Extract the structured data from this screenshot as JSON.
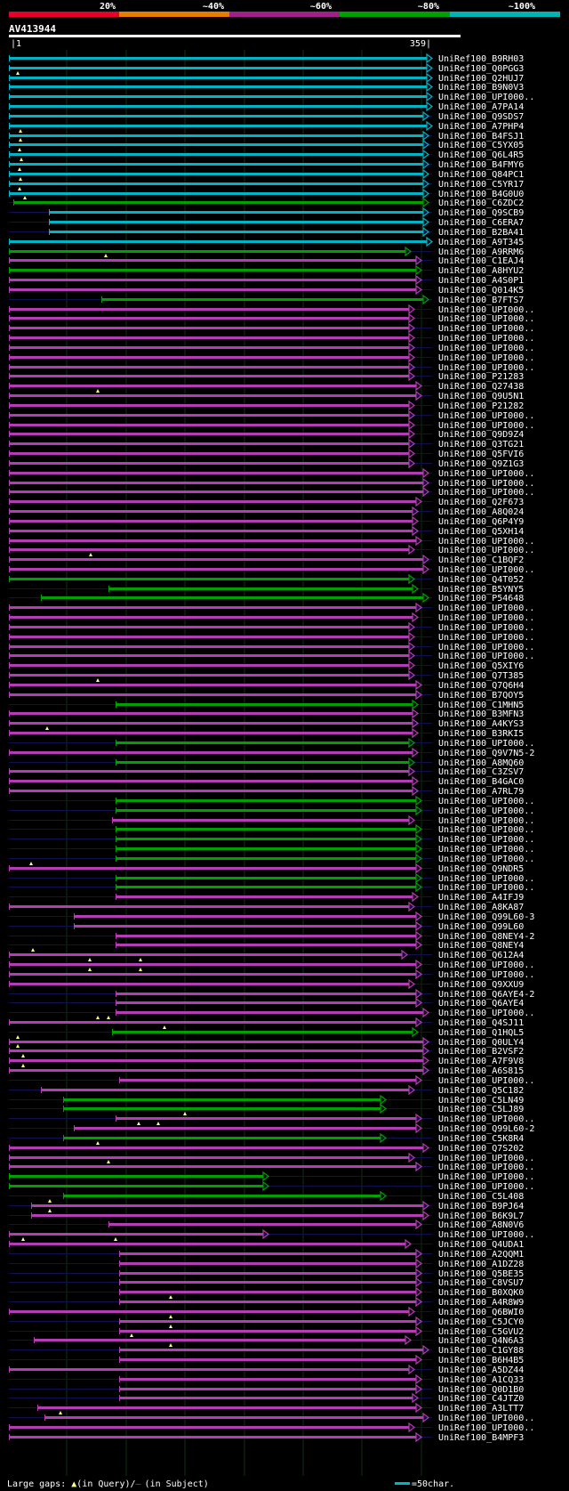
{
  "header": {
    "pct_labels": [
      "20%",
      "~40%",
      "~60%",
      "~80%",
      "~100%"
    ],
    "band_colors": [
      "#e8002a",
      "#e87c00",
      "#a0208a",
      "#00a000",
      "#00b4b4"
    ]
  },
  "query": {
    "id": "AV413944",
    "start": "|1",
    "end": "359|"
  },
  "footer": {
    "legend_prefix": "Large gaps: ",
    "legend_query": "(in Query)/",
    "legend_subject": "(in Subject)",
    "scale_label": "=50char.",
    "gap_marker_color": "#ffff80",
    "subject_gap_color": "#2244aa"
  },
  "colors": {
    "cyan": "#00b4c8",
    "green": "#00a000",
    "magenta": "#b43cb4",
    "backbone": "#101050",
    "grid": "#103010"
  },
  "hits": [
    {
      "id": "UniRef100_B9RH03",
      "c": "cyan",
      "s": 10,
      "e": 486,
      "m": []
    },
    {
      "id": "UniRef100_Q0PGG3",
      "c": "cyan",
      "s": 10,
      "e": 486,
      "m": []
    },
    {
      "id": "UniRef100_Q2HUJ7",
      "c": "cyan",
      "s": 10,
      "e": 486,
      "m": [
        20
      ]
    },
    {
      "id": "UniRef100_B9N0V3",
      "c": "cyan",
      "s": 10,
      "e": 486,
      "m": []
    },
    {
      "id": "UniRef100_UPI000..",
      "c": "cyan",
      "s": 10,
      "e": 486,
      "m": []
    },
    {
      "id": "UniRef100_A7PA14",
      "c": "cyan",
      "s": 10,
      "e": 486,
      "m": []
    },
    {
      "id": "UniRef100_Q9SDS7",
      "c": "cyan",
      "s": 10,
      "e": 482,
      "m": []
    },
    {
      "id": "UniRef100_A7PHP4",
      "c": "cyan",
      "s": 10,
      "e": 486,
      "m": []
    },
    {
      "id": "UniRef100_B4FSJ1",
      "c": "cyan",
      "s": 10,
      "e": 482,
      "m": [
        23
      ]
    },
    {
      "id": "UniRef100_C5YX05",
      "c": "cyan",
      "s": 10,
      "e": 482,
      "m": [
        23
      ]
    },
    {
      "id": "UniRef100_Q6L4R5",
      "c": "cyan",
      "s": 10,
      "e": 482,
      "m": [
        22
      ]
    },
    {
      "id": "UniRef100_B4FMY6",
      "c": "cyan",
      "s": 10,
      "e": 482,
      "m": [
        24
      ]
    },
    {
      "id": "UniRef100_Q84PC1",
      "c": "cyan",
      "s": 10,
      "e": 482,
      "m": [
        22
      ]
    },
    {
      "id": "UniRef100_C5YR17",
      "c": "cyan",
      "s": 10,
      "e": 482,
      "m": [
        23
      ]
    },
    {
      "id": "UniRef100_B4G0U0",
      "c": "cyan",
      "s": 10,
      "e": 482,
      "m": [
        22
      ]
    },
    {
      "id": "UniRef100_C6ZDC2",
      "c": "green",
      "s": 15,
      "e": 482,
      "m": [
        28
      ]
    },
    {
      "id": "UniRef100_Q9SCB9",
      "c": "cyan",
      "s": 55,
      "e": 482,
      "m": []
    },
    {
      "id": "UniRef100_C6ERA7",
      "c": "cyan",
      "s": 55,
      "e": 482,
      "m": []
    },
    {
      "id": "UniRef100_B2BA41",
      "c": "cyan",
      "s": 55,
      "e": 482,
      "m": []
    },
    {
      "id": "UniRef100_A9T345",
      "c": "cyan",
      "s": 10,
      "e": 486,
      "m": []
    },
    {
      "id": "UniRef100_A9RRM6",
      "c": "green",
      "s": 10,
      "e": 462,
      "m": []
    },
    {
      "id": "UniRef100_C1EAJ4",
      "c": "magenta",
      "s": 10,
      "e": 474,
      "m": [
        119
      ]
    },
    {
      "id": "UniRef100_A8HYU2",
      "c": "green",
      "s": 10,
      "e": 474,
      "m": []
    },
    {
      "id": "UniRef100_A4S0P1",
      "c": "magenta",
      "s": 10,
      "e": 474,
      "m": []
    },
    {
      "id": "UniRef100_Q014K5",
      "c": "magenta",
      "s": 10,
      "e": 474,
      "m": []
    },
    {
      "id": "UniRef100_B7FTS7",
      "c": "green",
      "s": 114,
      "e": 482,
      "m": []
    },
    {
      "id": "UniRef100_UPI000..",
      "c": "magenta",
      "s": 10,
      "e": 466,
      "m": []
    },
    {
      "id": "UniRef100_UPI000..",
      "c": "magenta",
      "s": 10,
      "e": 466,
      "m": []
    },
    {
      "id": "UniRef100_UPI000..",
      "c": "magenta",
      "s": 10,
      "e": 466,
      "m": []
    },
    {
      "id": "UniRef100_UPI000..",
      "c": "magenta",
      "s": 10,
      "e": 466,
      "m": []
    },
    {
      "id": "UniRef100_UPI000..",
      "c": "magenta",
      "s": 10,
      "e": 466,
      "m": []
    },
    {
      "id": "UniRef100_UPI000..",
      "c": "magenta",
      "s": 10,
      "e": 466,
      "m": []
    },
    {
      "id": "UniRef100_UPI000..",
      "c": "magenta",
      "s": 10,
      "e": 466,
      "m": []
    },
    {
      "id": "UniRef100_P21283",
      "c": "magenta",
      "s": 10,
      "e": 466,
      "m": []
    },
    {
      "id": "UniRef100_Q27438",
      "c": "magenta",
      "s": 10,
      "e": 474,
      "m": []
    },
    {
      "id": "UniRef100_Q9U5N1",
      "c": "magenta",
      "s": 10,
      "e": 474,
      "m": [
        110
      ]
    },
    {
      "id": "UniRef100_P21282",
      "c": "magenta",
      "s": 10,
      "e": 466,
      "m": []
    },
    {
      "id": "UniRef100_UPI000..",
      "c": "magenta",
      "s": 10,
      "e": 466,
      "m": []
    },
    {
      "id": "UniRef100_UPI000..",
      "c": "magenta",
      "s": 10,
      "e": 466,
      "m": []
    },
    {
      "id": "UniRef100_Q9D9Z4",
      "c": "magenta",
      "s": 10,
      "e": 466,
      "m": []
    },
    {
      "id": "UniRef100_Q3TG21",
      "c": "magenta",
      "s": 10,
      "e": 466,
      "m": []
    },
    {
      "id": "UniRef100_Q5FVI6",
      "c": "magenta",
      "s": 10,
      "e": 466,
      "m": []
    },
    {
      "id": "UniRef100_Q9Z1G3",
      "c": "magenta",
      "s": 10,
      "e": 466,
      "m": []
    },
    {
      "id": "UniRef100_UPI000..",
      "c": "magenta",
      "s": 10,
      "e": 482,
      "m": []
    },
    {
      "id": "UniRef100_UPI000..",
      "c": "magenta",
      "s": 10,
      "e": 482,
      "m": []
    },
    {
      "id": "UniRef100_UPI000..",
      "c": "magenta",
      "s": 10,
      "e": 482,
      "m": []
    },
    {
      "id": "UniRef100_Q2F673",
      "c": "magenta",
      "s": 10,
      "e": 474,
      "m": []
    },
    {
      "id": "UniRef100_A8Q024",
      "c": "magenta",
      "s": 10,
      "e": 470,
      "m": []
    },
    {
      "id": "UniRef100_Q6P4Y9",
      "c": "magenta",
      "s": 10,
      "e": 470,
      "m": []
    },
    {
      "id": "UniRef100_Q5XH14",
      "c": "magenta",
      "s": 10,
      "e": 470,
      "m": []
    },
    {
      "id": "UniRef100_UPI000..",
      "c": "magenta",
      "s": 10,
      "e": 474,
      "m": []
    },
    {
      "id": "UniRef100_UPI000..",
      "c": "magenta",
      "s": 10,
      "e": 466,
      "m": []
    },
    {
      "id": "UniRef100_C1BQF2",
      "c": "magenta",
      "s": 10,
      "e": 482,
      "m": [
        102
      ]
    },
    {
      "id": "UniRef100_UPI000..",
      "c": "magenta",
      "s": 10,
      "e": 482,
      "m": []
    },
    {
      "id": "UniRef100_Q4T052",
      "c": "green",
      "s": 10,
      "e": 466,
      "m": []
    },
    {
      "id": "UniRef100_B5YNY5",
      "c": "green",
      "s": 122,
      "e": 470,
      "m": []
    },
    {
      "id": "UniRef100_P54648",
      "c": "green",
      "s": 46,
      "e": 482,
      "m": []
    },
    {
      "id": "UniRef100_UPI000..",
      "c": "magenta",
      "s": 10,
      "e": 474,
      "m": []
    },
    {
      "id": "UniRef100_UPI000..",
      "c": "magenta",
      "s": 10,
      "e": 470,
      "m": []
    },
    {
      "id": "UniRef100_UPI000..",
      "c": "magenta",
      "s": 10,
      "e": 466,
      "m": []
    },
    {
      "id": "UniRef100_UPI000..",
      "c": "magenta",
      "s": 10,
      "e": 466,
      "m": []
    },
    {
      "id": "UniRef100_UPI000..",
      "c": "magenta",
      "s": 10,
      "e": 466,
      "m": []
    },
    {
      "id": "UniRef100_UPI000..",
      "c": "magenta",
      "s": 10,
      "e": 466,
      "m": []
    },
    {
      "id": "UniRef100_Q5XIY6",
      "c": "magenta",
      "s": 10,
      "e": 466,
      "m": []
    },
    {
      "id": "UniRef100_Q7T385",
      "c": "magenta",
      "s": 10,
      "e": 466,
      "m": []
    },
    {
      "id": "UniRef100_Q7Q6H4",
      "c": "magenta",
      "s": 10,
      "e": 474,
      "m": [
        110
      ]
    },
    {
      "id": "UniRef100_B7QOY5",
      "c": "magenta",
      "s": 10,
      "e": 474,
      "m": []
    },
    {
      "id": "UniRef100_C1MHN5",
      "c": "green",
      "s": 130,
      "e": 470,
      "m": []
    },
    {
      "id": "UniRef100_B3MFN3",
      "c": "magenta",
      "s": 10,
      "e": 470,
      "m": []
    },
    {
      "id": "UniRef100_A4KYS3",
      "c": "magenta",
      "s": 10,
      "e": 470,
      "m": []
    },
    {
      "id": "UniRef100_B3RKI5",
      "c": "magenta",
      "s": 10,
      "e": 470,
      "m": [
        53
      ]
    },
    {
      "id": "UniRef100_UPI000..",
      "c": "green",
      "s": 130,
      "e": 466,
      "m": []
    },
    {
      "id": "UniRef100_Q9V7N5-2",
      "c": "magenta",
      "s": 10,
      "e": 470,
      "m": []
    },
    {
      "id": "UniRef100_A8MQ60",
      "c": "green",
      "s": 130,
      "e": 466,
      "m": []
    },
    {
      "id": "UniRef100_C3ZSV7",
      "c": "magenta",
      "s": 10,
      "e": 466,
      "m": []
    },
    {
      "id": "UniRef100_B4GAC0",
      "c": "magenta",
      "s": 10,
      "e": 470,
      "m": []
    },
    {
      "id": "UniRef100_A7RL79",
      "c": "magenta",
      "s": 10,
      "e": 470,
      "m": []
    },
    {
      "id": "UniRef100_UPI000..",
      "c": "green",
      "s": 130,
      "e": 474,
      "m": []
    },
    {
      "id": "UniRef100_UPI000..",
      "c": "green",
      "s": 130,
      "e": 474,
      "m": []
    },
    {
      "id": "UniRef100_UPI000..",
      "c": "magenta",
      "s": 126,
      "e": 466,
      "m": []
    },
    {
      "id": "UniRef100_UPI000..",
      "c": "green",
      "s": 130,
      "e": 474,
      "m": []
    },
    {
      "id": "UniRef100_UPI000..",
      "c": "green",
      "s": 130,
      "e": 474,
      "m": []
    },
    {
      "id": "UniRef100_UPI000..",
      "c": "green",
      "s": 130,
      "e": 474,
      "m": []
    },
    {
      "id": "UniRef100_UPI000..",
      "c": "green",
      "s": 130,
      "e": 474,
      "m": []
    },
    {
      "id": "UniRef100_Q9NDR5",
      "c": "magenta",
      "s": 10,
      "e": 474,
      "m": [
        35
      ]
    },
    {
      "id": "UniRef100_UPI000..",
      "c": "green",
      "s": 130,
      "e": 474,
      "m": []
    },
    {
      "id": "UniRef100_UPI000..",
      "c": "green",
      "s": 130,
      "e": 474,
      "m": []
    },
    {
      "id": "UniRef100_A4IFJ9",
      "c": "magenta",
      "s": 130,
      "e": 470,
      "m": []
    },
    {
      "id": "UniRef100_A8KA87",
      "c": "magenta",
      "s": 10,
      "e": 466,
      "m": []
    },
    {
      "id": "UniRef100_Q99L60-3",
      "c": "magenta",
      "s": 83,
      "e": 474,
      "m": []
    },
    {
      "id": "UniRef100_Q99L60",
      "c": "magenta",
      "s": 83,
      "e": 474,
      "m": []
    },
    {
      "id": "UniRef100_Q8NEY4-2",
      "c": "magenta",
      "s": 130,
      "e": 474,
      "m": []
    },
    {
      "id": "UniRef100_Q8NEY4",
      "c": "magenta",
      "s": 130,
      "e": 474,
      "m": []
    },
    {
      "id": "UniRef100_Q612A4",
      "c": "magenta",
      "s": 10,
      "e": 458,
      "m": [
        37
      ]
    },
    {
      "id": "UniRef100_UPI000..",
      "c": "magenta",
      "s": 10,
      "e": 474,
      "m": [
        101,
        158
      ]
    },
    {
      "id": "UniRef100_UPI000..",
      "c": "magenta",
      "s": 10,
      "e": 474,
      "m": [
        101,
        158
      ]
    },
    {
      "id": "UniRef100_Q9XXU9",
      "c": "magenta",
      "s": 10,
      "e": 466,
      "m": []
    },
    {
      "id": "UniRef100_Q6AYE4-2",
      "c": "magenta",
      "s": 130,
      "e": 474,
      "m": []
    },
    {
      "id": "UniRef100_Q6AYE4",
      "c": "magenta",
      "s": 130,
      "e": 474,
      "m": []
    },
    {
      "id": "UniRef100_UPI000..",
      "c": "magenta",
      "s": 130,
      "e": 482,
      "m": []
    },
    {
      "id": "UniRef100_Q4SJ11",
      "c": "magenta",
      "s": 10,
      "e": 474,
      "m": [
        110,
        122
      ]
    },
    {
      "id": "UniRef100_Q1HQL5",
      "c": "green",
      "s": 126,
      "e": 470,
      "m": [
        185
      ]
    },
    {
      "id": "UniRef100_Q0ULY4",
      "c": "magenta",
      "s": 10,
      "e": 482,
      "m": [
        20
      ]
    },
    {
      "id": "UniRef100_B2VSF2",
      "c": "magenta",
      "s": 10,
      "e": 482,
      "m": [
        20
      ]
    },
    {
      "id": "UniRef100_A7F9V8",
      "c": "magenta",
      "s": 10,
      "e": 482,
      "m": [
        26
      ]
    },
    {
      "id": "UniRef100_A6S815",
      "c": "magenta",
      "s": 10,
      "e": 482,
      "m": [
        26
      ]
    },
    {
      "id": "UniRef100_UPI000..",
      "c": "magenta",
      "s": 134,
      "e": 474,
      "m": []
    },
    {
      "id": "UniRef100_Q5C182",
      "c": "magenta",
      "s": 46,
      "e": 466,
      "m": []
    },
    {
      "id": "UniRef100_C5LN49",
      "c": "green",
      "s": 71,
      "e": 434,
      "m": []
    },
    {
      "id": "UniRef100_C5LJ89",
      "c": "green",
      "s": 71,
      "e": 434,
      "m": []
    },
    {
      "id": "UniRef100_UPI000..",
      "c": "magenta",
      "s": 130,
      "e": 474,
      "m": [
        208
      ]
    },
    {
      "id": "UniRef100_Q99L60-2",
      "c": "magenta",
      "s": 83,
      "e": 474,
      "m": [
        156,
        178
      ]
    },
    {
      "id": "UniRef100_C5K8R4",
      "c": "green",
      "s": 71,
      "e": 434,
      "m": []
    },
    {
      "id": "UniRef100_Q7S202",
      "c": "magenta",
      "s": 10,
      "e": 482,
      "m": [
        110
      ]
    },
    {
      "id": "UniRef100_UPI000..",
      "c": "magenta",
      "s": 10,
      "e": 466,
      "m": []
    },
    {
      "id": "UniRef100_UPI000..",
      "c": "magenta",
      "s": 10,
      "e": 474,
      "m": [
        122
      ]
    },
    {
      "id": "UniRef100_UPI000..",
      "c": "green",
      "s": 10,
      "e": 302,
      "m": []
    },
    {
      "id": "UniRef100_UPI000..",
      "c": "green",
      "s": 10,
      "e": 302,
      "m": []
    },
    {
      "id": "UniRef100_C5L408",
      "c": "green",
      "s": 71,
      "e": 434,
      "m": []
    },
    {
      "id": "UniRef100_B9PJ64",
      "c": "magenta",
      "s": 35,
      "e": 482,
      "m": [
        56
      ]
    },
    {
      "id": "UniRef100_B6K9L7",
      "c": "magenta",
      "s": 35,
      "e": 482,
      "m": [
        56
      ]
    },
    {
      "id": "UniRef100_A8N0V6",
      "c": "magenta",
      "s": 122,
      "e": 474,
      "m": []
    },
    {
      "id": "UniRef100_UPI000..",
      "c": "magenta",
      "s": 10,
      "e": 302,
      "m": []
    },
    {
      "id": "UniRef100_Q4UDA1",
      "c": "magenta",
      "s": 10,
      "e": 462,
      "m": [
        26,
        130
      ]
    },
    {
      "id": "UniRef100_A2QQM1",
      "c": "magenta",
      "s": 134,
      "e": 474,
      "m": []
    },
    {
      "id": "UniRef100_A1DZ28",
      "c": "magenta",
      "s": 134,
      "e": 474,
      "m": []
    },
    {
      "id": "UniRef100_Q5BE35",
      "c": "magenta",
      "s": 134,
      "e": 474,
      "m": []
    },
    {
      "id": "UniRef100_C8VSU7",
      "c": "magenta",
      "s": 134,
      "e": 474,
      "m": []
    },
    {
      "id": "UniRef100_B0XQK0",
      "c": "magenta",
      "s": 134,
      "e": 474,
      "m": []
    },
    {
      "id": "UniRef100_A4R8W9",
      "c": "magenta",
      "s": 134,
      "e": 474,
      "m": [
        192
      ]
    },
    {
      "id": "UniRef100_Q6BWI0",
      "c": "magenta",
      "s": 10,
      "e": 466,
      "m": []
    },
    {
      "id": "UniRef100_C5JCY0",
      "c": "magenta",
      "s": 134,
      "e": 474,
      "m": [
        192
      ]
    },
    {
      "id": "UniRef100_C5GVU2",
      "c": "magenta",
      "s": 134,
      "e": 474,
      "m": [
        192
      ]
    },
    {
      "id": "UniRef100_Q4N6A3",
      "c": "magenta",
      "s": 38,
      "e": 462,
      "m": [
        148
      ]
    },
    {
      "id": "UniRef100_C1GY88",
      "c": "magenta",
      "s": 134,
      "e": 482,
      "m": [
        192
      ]
    },
    {
      "id": "UniRef100_B6H4B5",
      "c": "magenta",
      "s": 134,
      "e": 474,
      "m": []
    },
    {
      "id": "UniRef100_A5DZ44",
      "c": "magenta",
      "s": 10,
      "e": 466,
      "m": []
    },
    {
      "id": "UniRef100_A1CQ33",
      "c": "magenta",
      "s": 134,
      "e": 474,
      "m": []
    },
    {
      "id": "UniRef100_Q0D1B0",
      "c": "magenta",
      "s": 134,
      "e": 474,
      "m": []
    },
    {
      "id": "UniRef100_C4JTZ0",
      "c": "magenta",
      "s": 134,
      "e": 470,
      "m": []
    },
    {
      "id": "UniRef100_A3LTT7",
      "c": "magenta",
      "s": 42,
      "e": 474,
      "m": []
    },
    {
      "id": "UniRef100_UPI000..",
      "c": "magenta",
      "s": 50,
      "e": 482,
      "m": [
        68
      ]
    },
    {
      "id": "UniRef100_UPI000..",
      "c": "magenta",
      "s": 10,
      "e": 466,
      "m": []
    },
    {
      "id": "UniRef100_B4MPF3",
      "c": "magenta",
      "s": 10,
      "e": 474,
      "m": []
    }
  ]
}
